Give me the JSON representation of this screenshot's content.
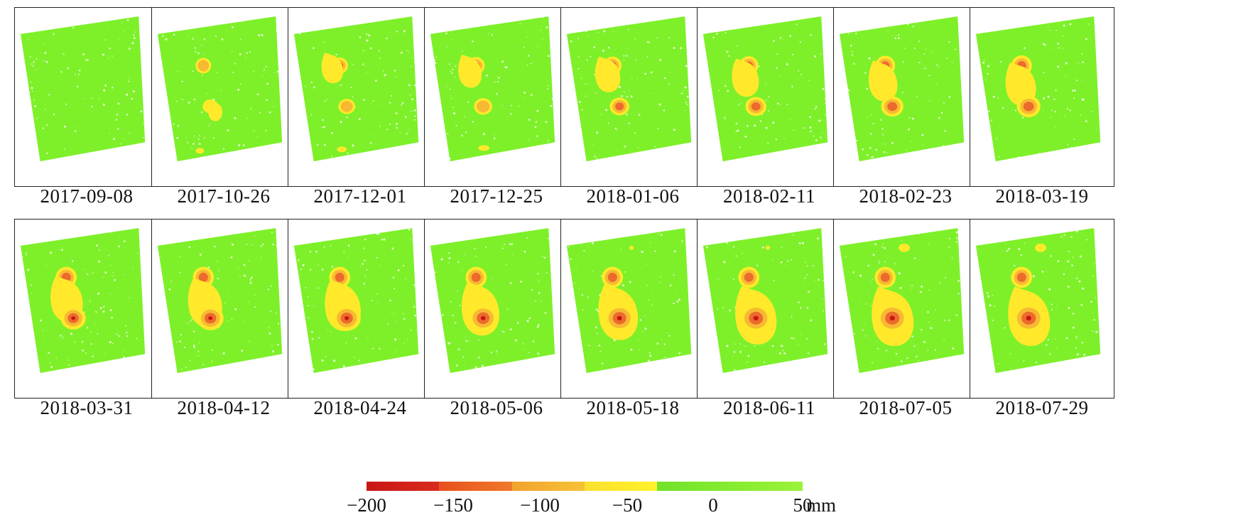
{
  "colors": {
    "background_class": "#7ef02a",
    "speckle": "#ffffff",
    "class_0_to_-50": "#ffe92a",
    "class_-50_to_-100": "#f7b933",
    "class_-100_to_-150": "#ec6a2c",
    "class_-150_to_-200": "#c81616",
    "frame": "#222222"
  },
  "panels": [
    {
      "date": "2017-09-08",
      "stage": 0
    },
    {
      "date": "2017-10-26",
      "stage": 1
    },
    {
      "date": "2017-12-01",
      "stage": 2
    },
    {
      "date": "2017-12-25",
      "stage": 3
    },
    {
      "date": "2018-01-06",
      "stage": 4
    },
    {
      "date": "2018-02-11",
      "stage": 5
    },
    {
      "date": "2018-02-23",
      "stage": 6
    },
    {
      "date": "2018-03-19",
      "stage": 7
    },
    {
      "date": "2018-03-31",
      "stage": 8
    },
    {
      "date": "2018-04-12",
      "stage": 9
    },
    {
      "date": "2018-04-24",
      "stage": 10
    },
    {
      "date": "2018-05-06",
      "stage": 11
    },
    {
      "date": "2018-05-18",
      "stage": 12
    },
    {
      "date": "2018-06-11",
      "stage": 13
    },
    {
      "date": "2018-07-05",
      "stage": 14
    },
    {
      "date": "2018-07-29",
      "stage": 15
    }
  ],
  "colorbar": {
    "ticks": [
      "−200",
      "−150",
      "−100",
      "−50",
      "0",
      "50"
    ],
    "unit": "mm",
    "segments": [
      {
        "from": "#c81616",
        "to": "#d92b1c"
      },
      {
        "from": "#e8501f",
        "to": "#ef7a2a"
      },
      {
        "from": "#f2a230",
        "to": "#f6c236"
      },
      {
        "from": "#f9e02e",
        "to": "#fff22a"
      },
      {
        "from": "#72e22a",
        "to": "#84ec30"
      },
      {
        "from": "#84ec30",
        "to": "#9df23a"
      }
    ]
  }
}
